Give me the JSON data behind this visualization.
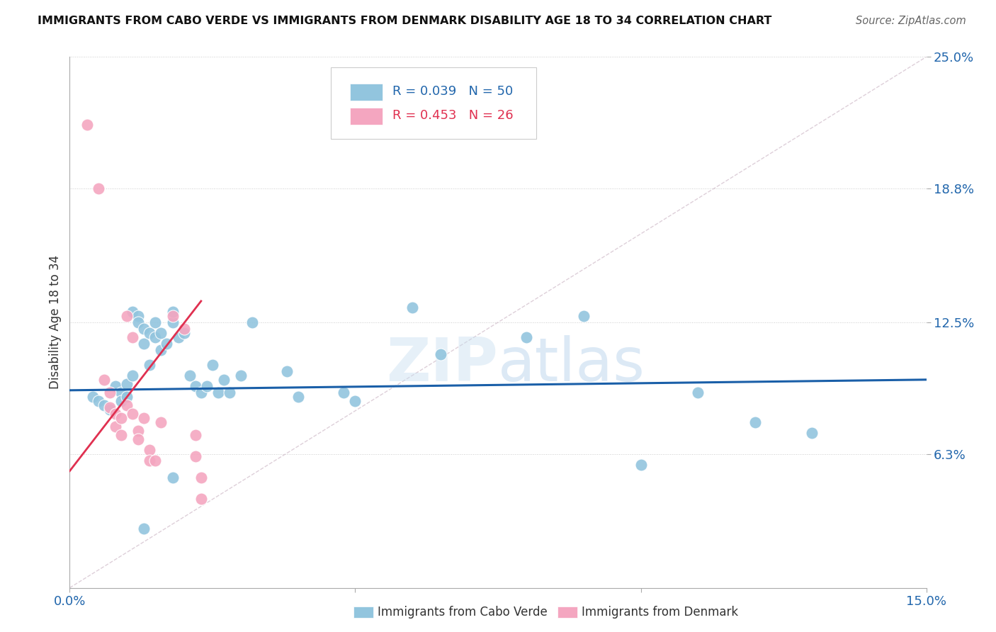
{
  "title": "IMMIGRANTS FROM CABO VERDE VS IMMIGRANTS FROM DENMARK DISABILITY AGE 18 TO 34 CORRELATION CHART",
  "source": "Source: ZipAtlas.com",
  "ylabel": "Disability Age 18 to 34",
  "legend_label1": "Immigrants from Cabo Verde",
  "legend_label2": "Immigrants from Denmark",
  "r1": 0.039,
  "n1": 50,
  "r2": 0.453,
  "n2": 26,
  "xmin": 0.0,
  "xmax": 0.15,
  "ymin": 0.0,
  "ymax": 0.25,
  "yticks": [
    0.063,
    0.125,
    0.188,
    0.25
  ],
  "ytick_labels": [
    "6.3%",
    "12.5%",
    "18.8%",
    "25.0%"
  ],
  "xticks": [
    0.0,
    0.05,
    0.1,
    0.15
  ],
  "xtick_labels": [
    "0.0%",
    "",
    "",
    "15.0%"
  ],
  "color_blue": "#92c5de",
  "color_pink": "#f4a6c0",
  "color_blue_line": "#1a5fa8",
  "color_pink_line": "#e03050",
  "color_ref_line": "#c8b0c0",
  "background": "#ffffff",
  "watermark_zip": "ZIP",
  "watermark_atlas": "atlas",
  "blue_dots": [
    [
      0.004,
      0.09
    ],
    [
      0.005,
      0.088
    ],
    [
      0.006,
      0.086
    ],
    [
      0.007,
      0.084
    ],
    [
      0.008,
      0.095
    ],
    [
      0.009,
      0.092
    ],
    [
      0.009,
      0.088
    ],
    [
      0.01,
      0.096
    ],
    [
      0.01,
      0.09
    ],
    [
      0.011,
      0.1
    ],
    [
      0.011,
      0.13
    ],
    [
      0.012,
      0.128
    ],
    [
      0.012,
      0.125
    ],
    [
      0.013,
      0.122
    ],
    [
      0.013,
      0.115
    ],
    [
      0.014,
      0.12
    ],
    [
      0.014,
      0.105
    ],
    [
      0.015,
      0.125
    ],
    [
      0.015,
      0.118
    ],
    [
      0.016,
      0.12
    ],
    [
      0.016,
      0.112
    ],
    [
      0.017,
      0.115
    ],
    [
      0.018,
      0.125
    ],
    [
      0.018,
      0.13
    ],
    [
      0.019,
      0.118
    ],
    [
      0.02,
      0.12
    ],
    [
      0.021,
      0.1
    ],
    [
      0.022,
      0.095
    ],
    [
      0.023,
      0.092
    ],
    [
      0.024,
      0.095
    ],
    [
      0.025,
      0.105
    ],
    [
      0.026,
      0.092
    ],
    [
      0.027,
      0.098
    ],
    [
      0.028,
      0.092
    ],
    [
      0.03,
      0.1
    ],
    [
      0.032,
      0.125
    ],
    [
      0.038,
      0.102
    ],
    [
      0.04,
      0.09
    ],
    [
      0.048,
      0.092
    ],
    [
      0.05,
      0.088
    ],
    [
      0.06,
      0.132
    ],
    [
      0.065,
      0.11
    ],
    [
      0.08,
      0.118
    ],
    [
      0.09,
      0.128
    ],
    [
      0.1,
      0.058
    ],
    [
      0.11,
      0.092
    ],
    [
      0.12,
      0.078
    ],
    [
      0.13,
      0.073
    ],
    [
      0.013,
      0.028
    ],
    [
      0.018,
      0.052
    ]
  ],
  "pink_dots": [
    [
      0.003,
      0.218
    ],
    [
      0.005,
      0.188
    ],
    [
      0.006,
      0.098
    ],
    [
      0.007,
      0.092
    ],
    [
      0.007,
      0.085
    ],
    [
      0.008,
      0.082
    ],
    [
      0.008,
      0.076
    ],
    [
      0.009,
      0.08
    ],
    [
      0.009,
      0.072
    ],
    [
      0.01,
      0.086
    ],
    [
      0.01,
      0.128
    ],
    [
      0.011,
      0.118
    ],
    [
      0.011,
      0.082
    ],
    [
      0.012,
      0.074
    ],
    [
      0.012,
      0.07
    ],
    [
      0.013,
      0.08
    ],
    [
      0.014,
      0.065
    ],
    [
      0.014,
      0.06
    ],
    [
      0.015,
      0.06
    ],
    [
      0.016,
      0.078
    ],
    [
      0.018,
      0.128
    ],
    [
      0.02,
      0.122
    ],
    [
      0.022,
      0.072
    ],
    [
      0.022,
      0.062
    ],
    [
      0.023,
      0.052
    ],
    [
      0.023,
      0.042
    ]
  ],
  "blue_line_x": [
    0.0,
    0.15
  ],
  "blue_line_y": [
    0.093,
    0.098
  ],
  "pink_line_x": [
    0.0,
    0.023
  ],
  "pink_line_y": [
    0.055,
    0.135
  ]
}
